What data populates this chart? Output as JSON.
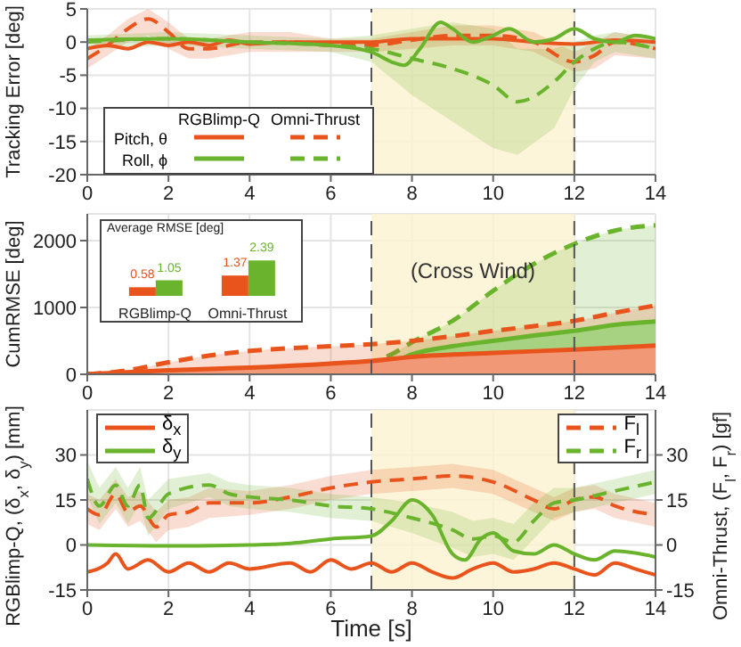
{
  "chart_data": [
    {
      "type": "line",
      "ylabel": "Tracking Error [deg]",
      "xlim": [
        0,
        14
      ],
      "xticks": [
        0,
        2,
        4,
        6,
        8,
        10,
        12,
        14
      ],
      "ylim": [
        -20,
        5
      ],
      "yticks": [
        -20,
        -15,
        -10,
        -5,
        0,
        5
      ],
      "grid": true,
      "legend": "bottom left",
      "annotations": [
        "RGBlimp-Q",
        "Omni-Thrust"
      ],
      "bands": [
        {
          "axis": "x",
          "from": 7,
          "to": 12,
          "color": "#fcf3cf"
        }
      ],
      "ref_lines": [
        {
          "axis": "x",
          "value": 7,
          "color": "#555555",
          "line_style": "dashed"
        },
        {
          "axis": "x",
          "value": 12,
          "color": "#555555",
          "line_style": "dashed"
        }
      ],
      "series": [
        {
          "name": "Pitch, θ",
          "color": "#e8541c",
          "line_style": "solid",
          "x": [
            0,
            0.5,
            1,
            1.5,
            2,
            2.5,
            3,
            3.5,
            4,
            5,
            6,
            7,
            8,
            9,
            10,
            11,
            12,
            13,
            14
          ],
          "values": [
            -1,
            -0.5,
            -1,
            0,
            -0.5,
            0,
            -0.5,
            0.3,
            -0.3,
            0,
            0,
            0,
            0.5,
            0.5,
            0.5,
            0,
            -0.3,
            0.3,
            0
          ]
        },
        {
          "color": "#e8541c",
          "line_style": "dashed",
          "x": [
            0,
            0.5,
            1,
            1.5,
            2,
            2.5,
            3,
            4,
            5,
            6,
            7,
            8,
            9,
            10,
            11,
            12,
            12.5,
            13,
            14
          ],
          "values": [
            -2.5,
            -0.5,
            2,
            3.5,
            1.5,
            -1,
            -1,
            0,
            0,
            -0.5,
            -0.5,
            0.3,
            1,
            1,
            0,
            -3,
            -2,
            0,
            -1
          ],
          "lower": [
            -4,
            -2,
            0,
            1,
            -1,
            -2.5,
            -2.5,
            -1.5,
            -1.5,
            -1.5,
            -1.5,
            -1,
            -0.5,
            -0.5,
            -1.5,
            -4.5,
            -4,
            -2,
            -2.5
          ],
          "upper": [
            -1,
            1,
            3.5,
            5,
            3,
            0.5,
            0.5,
            1.5,
            1.5,
            0.5,
            0.5,
            1.5,
            2.5,
            2.5,
            1.5,
            -1.5,
            0,
            1.5,
            0.5
          ]
        },
        {
          "name": "Roll, ϕ",
          "color": "#6ab42d",
          "line_style": "solid",
          "x": [
            0,
            2,
            4,
            6,
            7,
            7.5,
            7.8,
            8.2,
            8.7,
            9,
            9.5,
            10,
            10.4,
            11,
            11.5,
            12,
            12.5,
            13,
            13.5,
            14
          ],
          "values": [
            0.3,
            0.5,
            0,
            -0.5,
            -1.5,
            -3,
            -3.5,
            -1,
            3,
            2,
            0,
            1,
            2,
            0,
            0.5,
            2,
            0.5,
            0,
            1,
            0.5
          ]
        },
        {
          "color": "#6ab42d",
          "line_style": "dashed",
          "x": [
            0,
            2,
            4,
            6,
            7,
            8,
            9,
            10,
            10.6,
            11.5,
            12,
            12.5,
            13,
            14
          ],
          "values": [
            0,
            0.5,
            0,
            -0.5,
            -1,
            -2.5,
            -4,
            -6.5,
            -9,
            -6,
            -3,
            -1,
            0,
            -1
          ],
          "lower": [
            -1,
            -0.5,
            -1,
            -1.5,
            -3,
            -8,
            -12,
            -16,
            -17,
            -13,
            -7,
            -3,
            -1.5,
            -2.5
          ],
          "upper": [
            1,
            1.5,
            1,
            0.5,
            1,
            2,
            3,
            2,
            -1,
            -1,
            0,
            1,
            1.5,
            0.5
          ]
        }
      ]
    },
    {
      "type": "area",
      "ylabel": "CumRMSE [deg]",
      "xlim": [
        0,
        14
      ],
      "xticks": [
        0,
        2,
        4,
        6,
        8,
        10,
        12,
        14
      ],
      "ylim": [
        0,
        2400
      ],
      "yticks": [
        0,
        1000,
        2000
      ],
      "grid": true,
      "annotations": [
        "(Cross Wind)"
      ],
      "bands": [
        {
          "axis": "x",
          "from": 7,
          "to": 12,
          "color": "#fcf3cf"
        }
      ],
      "ref_lines": [
        {
          "axis": "x",
          "value": 7,
          "color": "#555555",
          "line_style": "dashed"
        },
        {
          "axis": "x",
          "value": 12,
          "color": "#555555",
          "line_style": "dashed"
        }
      ],
      "series": [
        {
          "color": "#6ab42d",
          "line_style": "dashed",
          "x": [
            0,
            2,
            4,
            6,
            7,
            7.5,
            8,
            9,
            10,
            11,
            12,
            13,
            14
          ],
          "values": [
            0,
            30,
            60,
            120,
            180,
            300,
            480,
            800,
            1250,
            1650,
            1950,
            2150,
            2230
          ]
        },
        {
          "color": "#e8541c",
          "line_style": "dashed",
          "x": [
            0,
            1,
            2,
            3,
            4,
            5,
            6,
            7,
            8,
            9,
            10,
            11,
            12,
            13,
            14
          ],
          "values": [
            0,
            60,
            180,
            280,
            350,
            390,
            420,
            450,
            500,
            570,
            650,
            720,
            800,
            920,
            1030
          ]
        },
        {
          "color": "#6ab42d",
          "line_style": "solid",
          "x": [
            0,
            2,
            4,
            6,
            7,
            7.5,
            8,
            9,
            10,
            11,
            12,
            13,
            14
          ],
          "values": [
            0,
            20,
            30,
            60,
            100,
            170,
            300,
            420,
            500,
            580,
            650,
            740,
            790
          ]
        },
        {
          "color": "#e8541c",
          "line_style": "solid",
          "x": [
            0,
            2,
            4,
            6,
            7,
            8,
            10,
            12,
            14
          ],
          "values": [
            0,
            60,
            100,
            160,
            200,
            260,
            320,
            370,
            430
          ]
        }
      ]
    },
    {
      "type": "bar",
      "title": "Average  RMSE [deg]",
      "categories": [
        "RGBlimp-Q",
        "Omni-Thrust"
      ],
      "data_labels": true,
      "series": [
        {
          "color": "#e8541c",
          "values": [
            0.58,
            1.37
          ]
        },
        {
          "color": "#6ab42d",
          "values": [
            1.05,
            2.39
          ]
        }
      ]
    },
    {
      "type": "line",
      "xlabel": "Time [s]",
      "ylabel": "RGBlimp-Q, (δ$_{x}$, δ$_{y}$) [mm]",
      "y2label": "Omni-Thrust, (F$_{l}$, F$_{r}$) [gf]",
      "xlim": [
        0,
        14
      ],
      "xticks": [
        0,
        2,
        4,
        6,
        8,
        10,
        12,
        14
      ],
      "ylim": [
        -15,
        45
      ],
      "yticks": [
        -15,
        0,
        15,
        30
      ],
      "y2lim": [
        -15,
        45
      ],
      "y2ticks": [
        -15,
        0,
        15,
        30
      ],
      "grid": true,
      "legend": "top",
      "bands": [
        {
          "axis": "x",
          "from": 7,
          "to": 12,
          "color": "#fcf3cf"
        }
      ],
      "ref_lines": [
        {
          "axis": "x",
          "value": 7,
          "color": "#555555",
          "line_style": "dashed"
        },
        {
          "axis": "x",
          "value": 12,
          "color": "#555555",
          "line_style": "dashed"
        }
      ],
      "series": [
        {
          "name": "F$_{l}$",
          "axis": "y2",
          "color": "#e8541c",
          "line_style": "dashed",
          "x": [
            0,
            0.3,
            0.7,
            1,
            1.3,
            1.7,
            2,
            2.5,
            3,
            4,
            5,
            6,
            7,
            8,
            9,
            10,
            11,
            11.5,
            12,
            12.5,
            13,
            14
          ],
          "values": [
            12,
            10,
            17,
            11,
            13,
            6,
            10,
            11,
            14,
            14,
            16,
            19,
            21,
            22,
            23,
            21,
            15,
            12,
            15,
            16,
            13,
            10
          ],
          "lower": [
            7,
            5,
            12,
            6,
            8,
            1,
            5,
            6,
            9,
            10,
            12,
            15,
            17,
            18,
            19,
            17,
            11,
            8,
            11,
            12,
            9,
            6
          ],
          "upper": [
            17,
            15,
            22,
            16,
            18,
            11,
            15,
            16,
            19,
            18,
            20,
            23,
            25,
            26,
            27,
            25,
            19,
            16,
            19,
            20,
            17,
            14
          ]
        },
        {
          "name": "F$_{r}$",
          "axis": "y2",
          "color": "#6ab42d",
          "line_style": "dashed",
          "x": [
            0,
            0.3,
            0.7,
            1,
            1.3,
            1.5,
            2,
            3,
            3.5,
            4,
            5,
            6,
            7,
            8,
            9,
            9.5,
            10,
            10.5,
            11,
            11.5,
            12,
            13,
            14
          ],
          "values": [
            22,
            13,
            20,
            13,
            20,
            9,
            17,
            20,
            17,
            16,
            15,
            13,
            12,
            9,
            5,
            2,
            3,
            1,
            8,
            14,
            15,
            18,
            21
          ],
          "lower": [
            16,
            7,
            14,
            7,
            14,
            3,
            12,
            16,
            13,
            12,
            11,
            9,
            8,
            4,
            -1,
            -4,
            -3,
            -5,
            2,
            9,
            11,
            14,
            17
          ],
          "upper": [
            28,
            19,
            26,
            19,
            26,
            15,
            22,
            24,
            21,
            20,
            19,
            17,
            16,
            14,
            11,
            8,
            9,
            7,
            14,
            19,
            19,
            22,
            25
          ]
        },
        {
          "name": "δ$_{x}$",
          "color": "#e8541c",
          "line_style": "solid",
          "x": [
            0,
            0.5,
            0.7,
            1,
            1.5,
            2,
            2.5,
            3,
            3.5,
            4,
            5,
            5.5,
            6,
            6.5,
            7,
            7.5,
            8,
            8.5,
            9,
            9.5,
            10,
            10.5,
            11,
            11.5,
            12,
            12.5,
            13,
            13.5,
            14
          ],
          "values": [
            -9,
            -6,
            -3,
            -8,
            -5,
            -9,
            -6,
            -9,
            -6,
            -8,
            -6,
            -9,
            -5,
            -8,
            -6,
            -9,
            -6,
            -9,
            -11,
            -8,
            -6,
            -9,
            -8,
            -6,
            -8,
            -10,
            -6,
            -8,
            -10
          ]
        },
        {
          "name": "δ$_{y}$",
          "color": "#6ab42d",
          "line_style": "solid",
          "x": [
            0,
            2,
            4,
            5,
            6,
            7,
            7.5,
            8,
            8.5,
            9,
            9.3,
            9.7,
            10,
            10.5,
            11,
            11.5,
            12,
            12.5,
            13,
            14
          ],
          "values": [
            0,
            -0.3,
            0,
            0.5,
            2,
            3,
            8,
            15,
            10,
            -3,
            -5,
            2,
            4,
            -2,
            -3,
            0,
            -3,
            -5,
            -2,
            -4
          ]
        }
      ]
    }
  ]
}
